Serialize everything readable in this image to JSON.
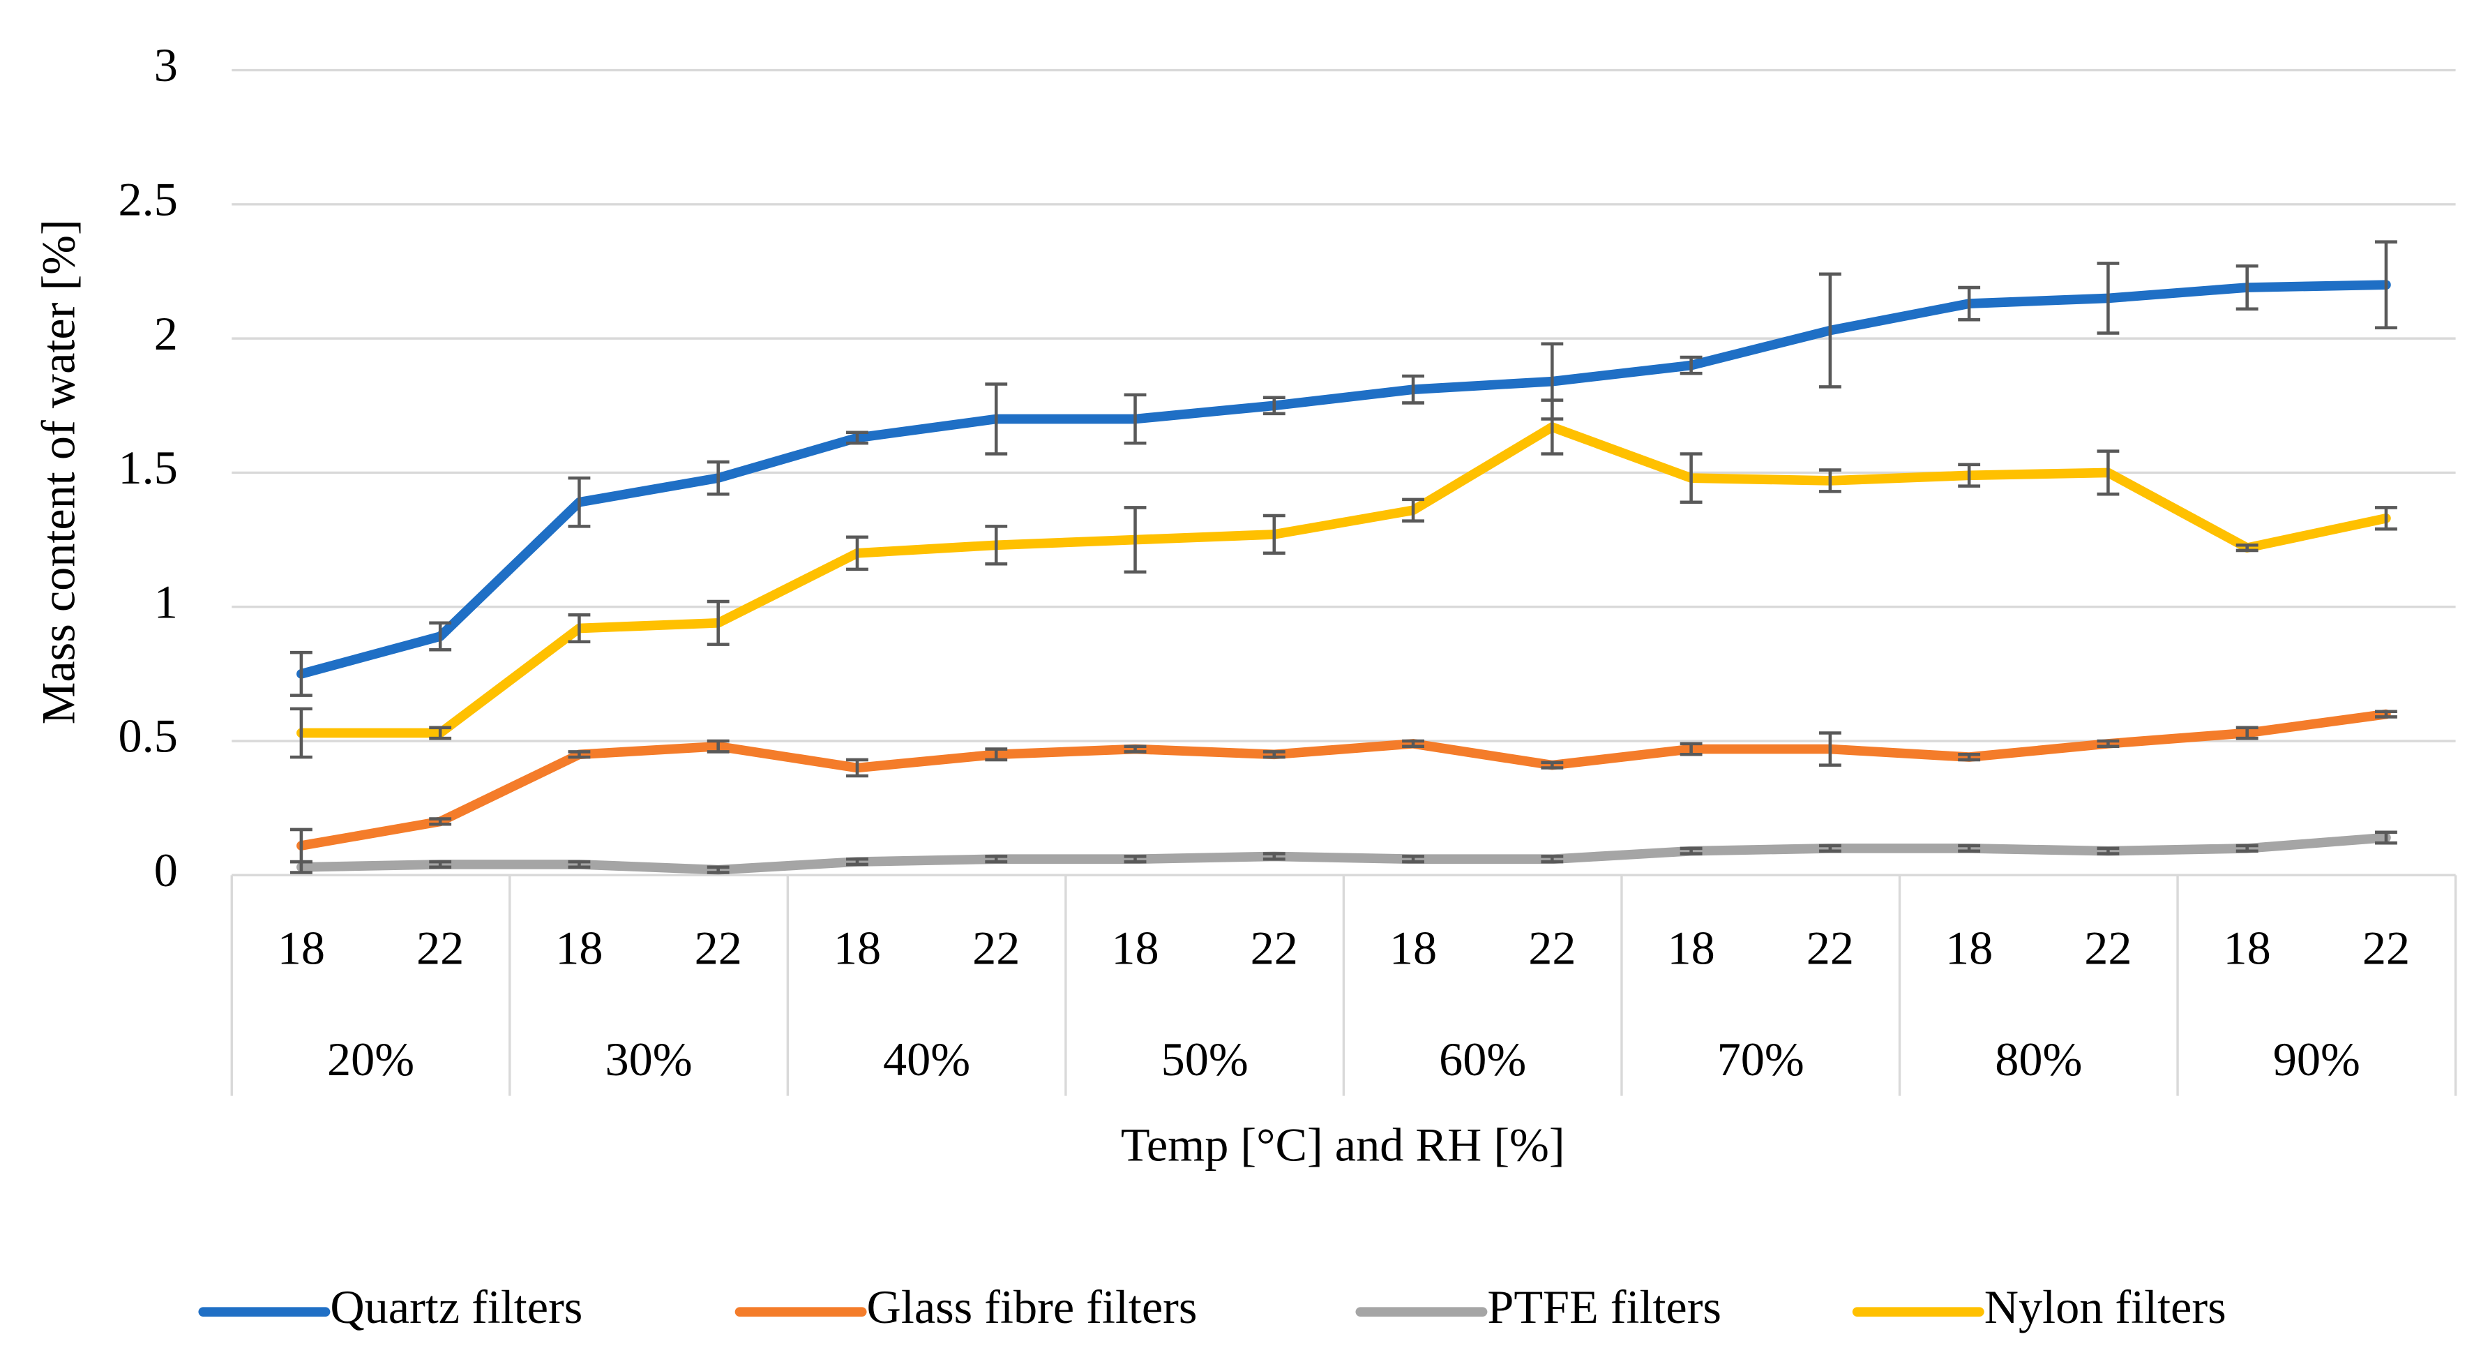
{
  "chart_data": {
    "type": "line",
    "y_label": "Mass content of water [%]",
    "x_label": "Temp [°C] and RH [%]",
    "categories": [
      "18",
      "22",
      "18",
      "22",
      "18",
      "22",
      "18",
      "22",
      "18",
      "22",
      "18",
      "22",
      "18",
      "22",
      "18",
      "22"
    ],
    "groups": [
      "20%",
      "30%",
      "40%",
      "50%",
      "60%",
      "70%",
      "80%",
      "90%"
    ],
    "ylim": [
      0,
      3
    ],
    "yticks": [
      0,
      0.5,
      1,
      1.5,
      2,
      2.5,
      3
    ],
    "grid": true,
    "legend": "bottom",
    "series": [
      {
        "name": "Quartz filters",
        "color": "#1f6fc5",
        "values": [
          0.75,
          0.89,
          1.39,
          1.48,
          1.63,
          1.7,
          1.7,
          1.75,
          1.81,
          1.84,
          1.9,
          2.03,
          2.13,
          2.15,
          2.19,
          2.2
        ],
        "errors": [
          0.08,
          0.05,
          0.09,
          0.06,
          0.02,
          0.13,
          0.09,
          0.03,
          0.05,
          0.14,
          0.03,
          0.21,
          0.06,
          0.13,
          0.08,
          0.16
        ]
      },
      {
        "name": "Glass fibre filters",
        "color": "#f47c2a",
        "values": [
          0.11,
          0.2,
          0.45,
          0.48,
          0.4,
          0.45,
          0.47,
          0.45,
          0.49,
          0.41,
          0.47,
          0.47,
          0.44,
          0.49,
          0.53,
          0.6
        ],
        "errors": [
          0.06,
          0.01,
          0.01,
          0.02,
          0.03,
          0.02,
          0.01,
          0.01,
          0.01,
          0.01,
          0.02,
          0.06,
          0.01,
          0.01,
          0.02,
          0.01
        ]
      },
      {
        "name": "PTFE filters",
        "color": "#a5a5a5",
        "values": [
          0.03,
          0.04,
          0.04,
          0.02,
          0.05,
          0.06,
          0.06,
          0.07,
          0.06,
          0.06,
          0.09,
          0.1,
          0.1,
          0.09,
          0.1,
          0.14
        ],
        "errors": [
          0.02,
          0.01,
          0.01,
          0.01,
          0.01,
          0.01,
          0.01,
          0.01,
          0.01,
          0.01,
          0.01,
          0.01,
          0.01,
          0.01,
          0.01,
          0.02
        ]
      },
      {
        "name": "Nylon filters",
        "color": "#ffc000",
        "values": [
          0.53,
          0.53,
          0.92,
          0.94,
          1.2,
          1.23,
          1.25,
          1.27,
          1.36,
          1.67,
          1.48,
          1.47,
          1.49,
          1.5,
          1.22,
          1.33
        ],
        "errors": [
          0.09,
          0.02,
          0.05,
          0.08,
          0.06,
          0.07,
          0.12,
          0.07,
          0.04,
          0.1,
          0.09,
          0.04,
          0.04,
          0.08,
          0.01,
          0.04
        ]
      }
    ]
  }
}
